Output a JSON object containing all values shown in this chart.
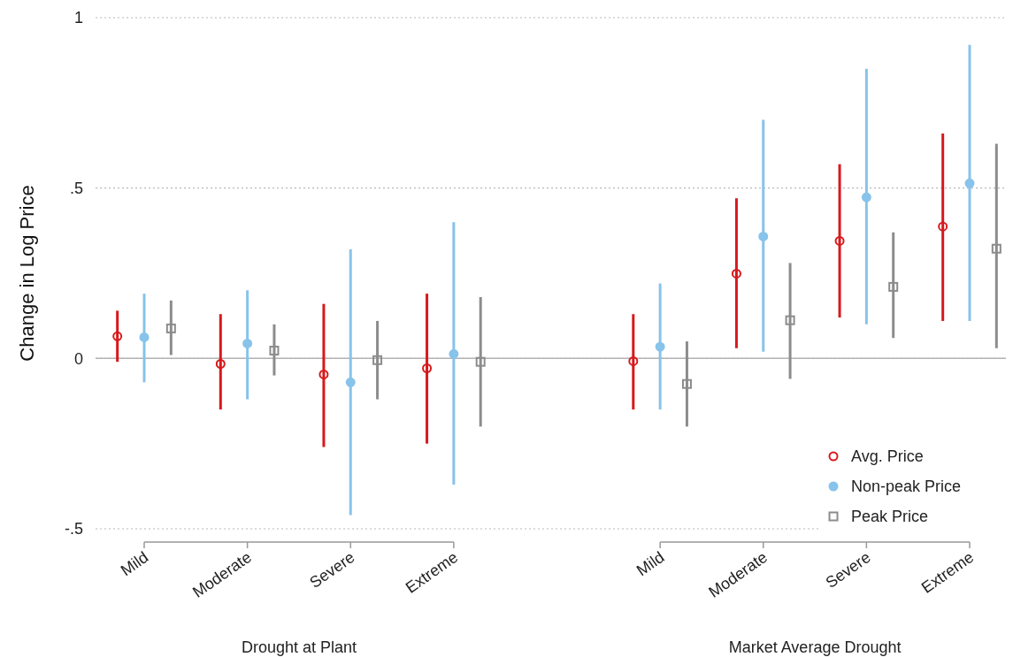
{
  "chart_data": {
    "type": "scatter",
    "ylabel": "Change in Log Price",
    "categories": [
      "Mild",
      "Moderate",
      "Severe",
      "Extreme",
      null,
      "Mild",
      "Moderate",
      "Severe",
      "Extreme"
    ],
    "annotations": [
      "Drought at Plant",
      "Market Average Drought"
    ],
    "ylim": [
      -0.5,
      1
    ],
    "yticks": [
      {
        "value": -0.5,
        "label": "-.5"
      },
      0,
      {
        "value": 0.5,
        "label": ".5"
      },
      1
    ],
    "grid": "y",
    "legend": "bottom right",
    "ref_lines": [
      {
        "axis": "y",
        "value": 0,
        "color": "#b3b3b3"
      }
    ],
    "series": [
      {
        "name": "Avg. Price",
        "color": "#d7191c",
        "marker": "circle",
        "values": [
          0.065,
          -0.016,
          -0.047,
          -0.029,
          null,
          -0.008,
          0.249,
          0.345,
          0.387
        ],
        "errors": [
          [
            -0.01,
            0.14
          ],
          [
            -0.15,
            0.13
          ],
          [
            -0.26,
            0.16
          ],
          [
            -0.25,
            0.19
          ],
          null,
          [
            -0.15,
            0.13
          ],
          [
            0.03,
            0.47
          ],
          [
            0.12,
            0.57
          ],
          [
            0.11,
            0.66
          ]
        ]
      },
      {
        "name": "Non-peak Price",
        "color": "#87c3ea",
        "marker": "circle",
        "values": [
          0.062,
          0.044,
          -0.07,
          0.013,
          null,
          0.034,
          0.358,
          0.473,
          0.514
        ],
        "errors": [
          [
            -0.07,
            0.19
          ],
          [
            -0.12,
            0.2
          ],
          [
            -0.46,
            0.32
          ],
          [
            -0.37,
            0.4
          ],
          null,
          [
            -0.15,
            0.22
          ],
          [
            0.02,
            0.7
          ],
          [
            0.1,
            0.85
          ],
          [
            0.11,
            0.92
          ]
        ]
      },
      {
        "name": "Peak Price",
        "color": "#8c8c8c",
        "marker": "square",
        "values": [
          0.088,
          0.023,
          -0.005,
          -0.01,
          null,
          -0.075,
          0.112,
          0.21,
          0.322
        ],
        "errors": [
          [
            0.01,
            0.17
          ],
          [
            -0.05,
            0.1
          ],
          [
            -0.12,
            0.11
          ],
          [
            -0.2,
            0.18
          ],
          null,
          [
            -0.2,
            0.05
          ],
          [
            -0.06,
            0.28
          ],
          [
            0.06,
            0.37
          ],
          [
            0.03,
            0.63
          ]
        ]
      }
    ]
  }
}
